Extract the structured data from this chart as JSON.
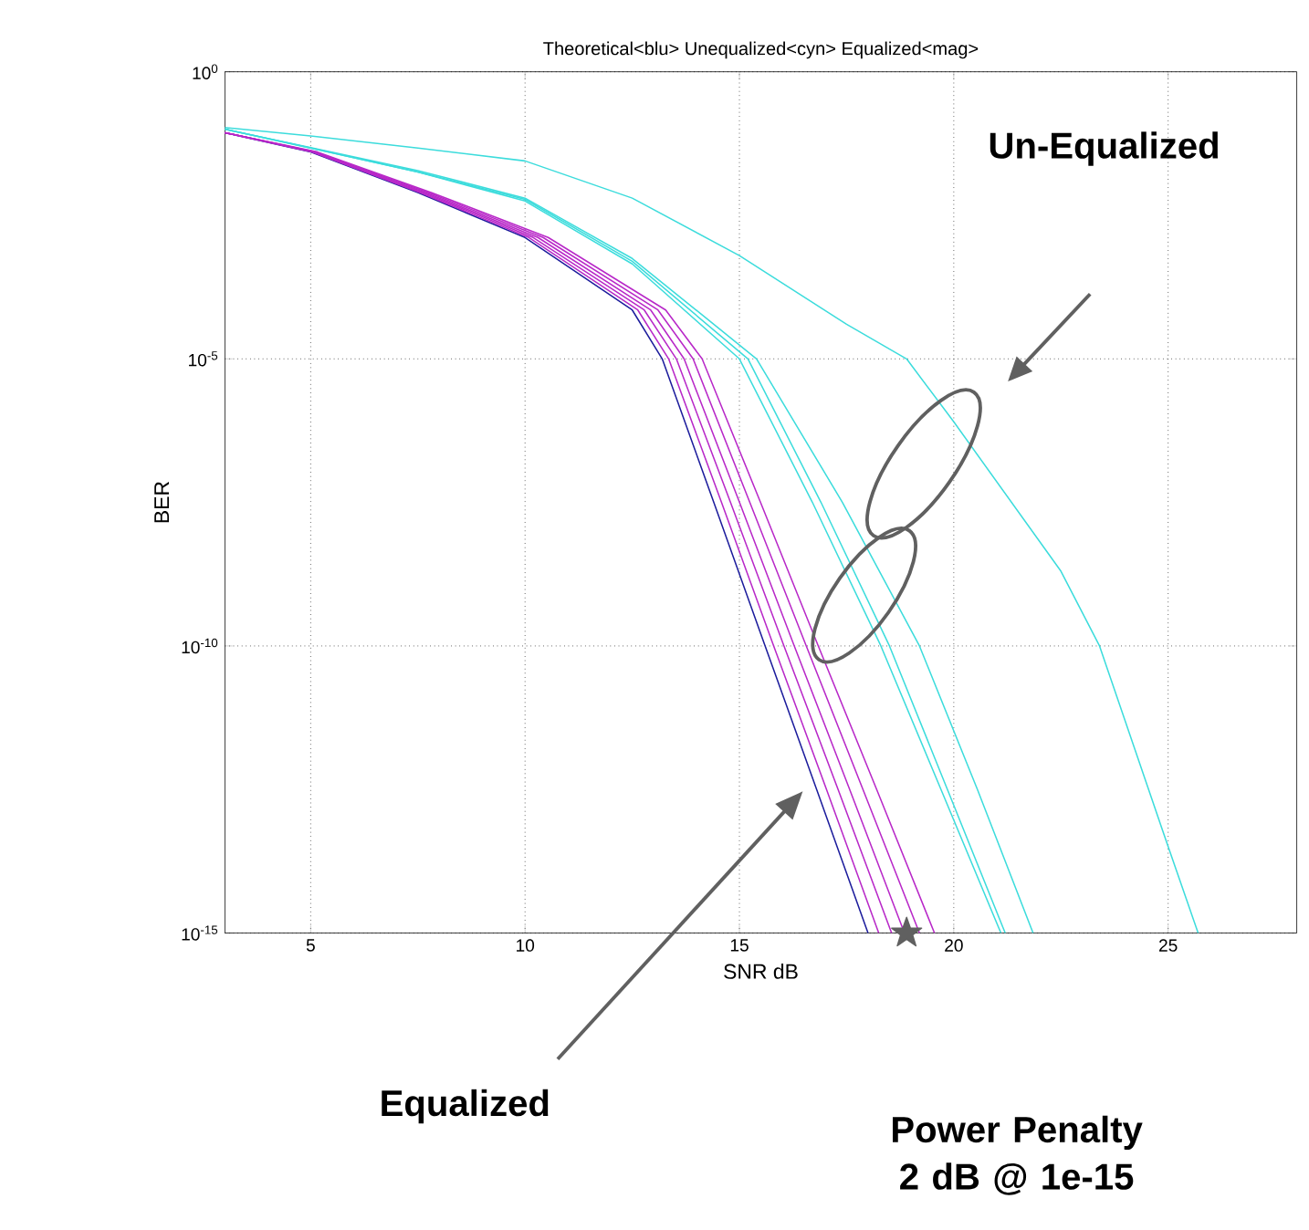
{
  "chart_data": {
    "type": "line",
    "title": "Theoretical<blu> Unequalized<cyn> Equalized<mag>",
    "xlabel": "SNR dB",
    "ylabel": "BER",
    "log": "y",
    "grid": true,
    "xlim": [
      3,
      28
    ],
    "ylim": [
      1e-15,
      1
    ],
    "xticks": [
      5,
      10,
      15,
      20,
      25
    ],
    "yticks": [
      {
        "value": 1,
        "label": "10$^{0}$"
      },
      {
        "value": 1e-05,
        "label": "10$^{-5}$"
      },
      {
        "value": 1e-10,
        "label": "10$^{-10}$"
      },
      {
        "value": 1e-15,
        "label": "10$^{-15}$"
      }
    ],
    "series": [
      {
        "color": "#1c1c9c",
        "x": [
          3,
          5,
          7.5,
          10,
          12.5,
          13.2,
          14.4,
          15.6,
          16.8,
          18.0
        ],
        "values": [
          0.087,
          0.04,
          0.0079,
          0.0013,
          7.1e-05,
          1e-05,
          3.2e-08,
          1e-10,
          3.2e-13,
          1e-15
        ]
      },
      {
        "color": "#b828c8",
        "x": [
          3,
          5.03,
          7.55,
          10.09,
          12.63,
          13.35,
          14.58,
          15.8,
          17.03,
          18.25
        ],
        "values": [
          0.087,
          0.04,
          0.0079,
          0.0013,
          7.1e-05,
          1e-05,
          3.2e-08,
          1e-10,
          3.2e-13,
          1e-15
        ]
      },
      {
        "color": "#b828c8",
        "x": [
          3,
          5.06,
          7.61,
          10.19,
          12.78,
          13.53,
          14.79,
          16.04,
          17.3,
          18.55
        ],
        "values": [
          0.087,
          0.04,
          0.0079,
          0.0013,
          7.1e-05,
          1e-05,
          3.2e-08,
          1e-10,
          3.2e-13,
          1e-15
        ]
      },
      {
        "color": "#b828c8",
        "x": [
          3,
          5.09,
          7.67,
          10.3,
          12.93,
          13.71,
          15.0,
          16.28,
          17.57,
          18.85
        ],
        "values": [
          0.087,
          0.04,
          0.0079,
          0.0013,
          7.1e-05,
          1e-05,
          3.2e-08,
          1e-10,
          3.2e-13,
          1e-15
        ]
      },
      {
        "color": "#b828c8",
        "x": [
          3,
          5.12,
          7.74,
          10.42,
          13.1,
          13.92,
          15.24,
          16.56,
          17.88,
          19.2
        ],
        "values": [
          0.087,
          0.04,
          0.0079,
          0.0013,
          7.1e-05,
          1e-05,
          3.2e-08,
          1e-10,
          3.2e-13,
          1e-15
        ]
      },
      {
        "color": "#b828c8",
        "x": [
          3,
          5.16,
          7.81,
          10.54,
          13.28,
          14.13,
          15.49,
          16.84,
          18.2,
          19.55
        ],
        "values": [
          0.087,
          0.04,
          0.0079,
          0.0013,
          7.1e-05,
          1e-05,
          3.2e-08,
          1e-10,
          3.2e-13,
          1e-15
        ]
      },
      {
        "color": "#3cdcdc",
        "x": [
          3,
          5,
          7.5,
          10,
          12.5,
          15.0,
          16.7,
          18.3,
          19.7,
          21.1
        ],
        "values": [
          0.1,
          0.047,
          0.018,
          0.0056,
          0.00045,
          1e-05,
          3.2e-08,
          1e-10,
          3.2e-13,
          1e-15
        ]
      },
      {
        "color": "#3cdcdc",
        "x": [
          3,
          5,
          7.5,
          10,
          12.5,
          15.2,
          16.9,
          18.5,
          19.85,
          21.2
        ],
        "values": [
          0.1,
          0.047,
          0.018,
          0.006,
          0.0005,
          1e-05,
          3.2e-08,
          1e-10,
          3.2e-13,
          1e-15
        ]
      },
      {
        "color": "#3cdcdc",
        "x": [
          3,
          5,
          7.5,
          10,
          12.5,
          15.4,
          17.4,
          19.2,
          20.55,
          21.85
        ],
        "values": [
          0.1,
          0.048,
          0.019,
          0.0063,
          0.00056,
          1e-05,
          3.2e-08,
          1e-10,
          3.2e-13,
          1e-15
        ]
      },
      {
        "color": "#3cdcdc",
        "x": [
          3,
          5,
          7.5,
          10,
          12.5,
          15,
          17.5,
          18.9,
          20,
          22.5,
          23.4,
          25,
          25.7
        ],
        "values": [
          0.107,
          0.076,
          0.047,
          0.028,
          0.0063,
          0.00063,
          4e-05,
          1e-05,
          8e-07,
          2e-09,
          1e-10,
          3.2e-14,
          1e-15
        ]
      },
      {
        "type": "scatter",
        "marker": "star",
        "color": "#606060",
        "x": [
          18.9
        ],
        "values": [
          1e-15
        ]
      }
    ],
    "annotations": [
      "Un-Equalized",
      "Equalized",
      "Power Penalty 2 dB @ 1e-15"
    ]
  }
}
